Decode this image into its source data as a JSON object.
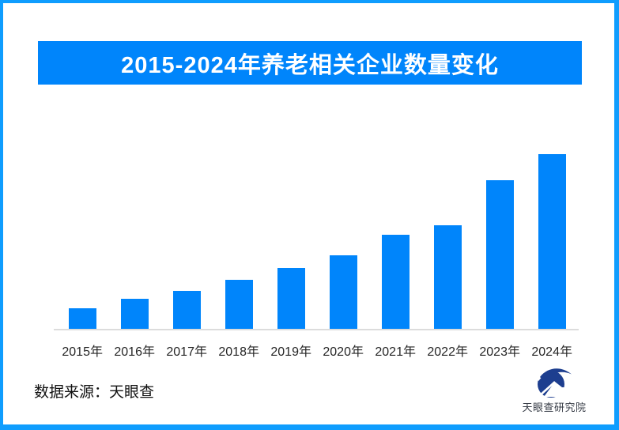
{
  "header": {
    "title": "2015-2024年养老相关企业数量变化"
  },
  "chart_data": {
    "type": "bar",
    "title": "2015-2024年养老相关企业数量变化",
    "categories": [
      "2015年",
      "2016年",
      "2017年",
      "2018年",
      "2019年",
      "2020年",
      "2021年",
      "2022年",
      "2023年",
      "2024年"
    ],
    "values": [
      11.7,
      17.1,
      21.9,
      27.9,
      35.0,
      41.9,
      53.7,
      59.2,
      84.9,
      100
    ],
    "value_scale": "relative index estimated from bar heights, 2024 = 100 (no y-axis labels shown)",
    "xlabel": "",
    "ylabel": "",
    "ylim": [
      0,
      100
    ],
    "grid": false,
    "legend": false,
    "y_axis_visible": false
  },
  "footer": {
    "source_label": "数据来源：天眼查",
    "logo_text": "天眼查研究院"
  },
  "colors": {
    "frame_border": "#0f9dfe",
    "banner_bg": "#0085fb",
    "banner_text": "#ffffff",
    "bar": "#0085fb",
    "axis_line": "#dcdcdc",
    "axis_label": "#262626",
    "source_text": "#111111",
    "logo_mark": "#1d3e8f",
    "logo_text": "#363b45"
  }
}
